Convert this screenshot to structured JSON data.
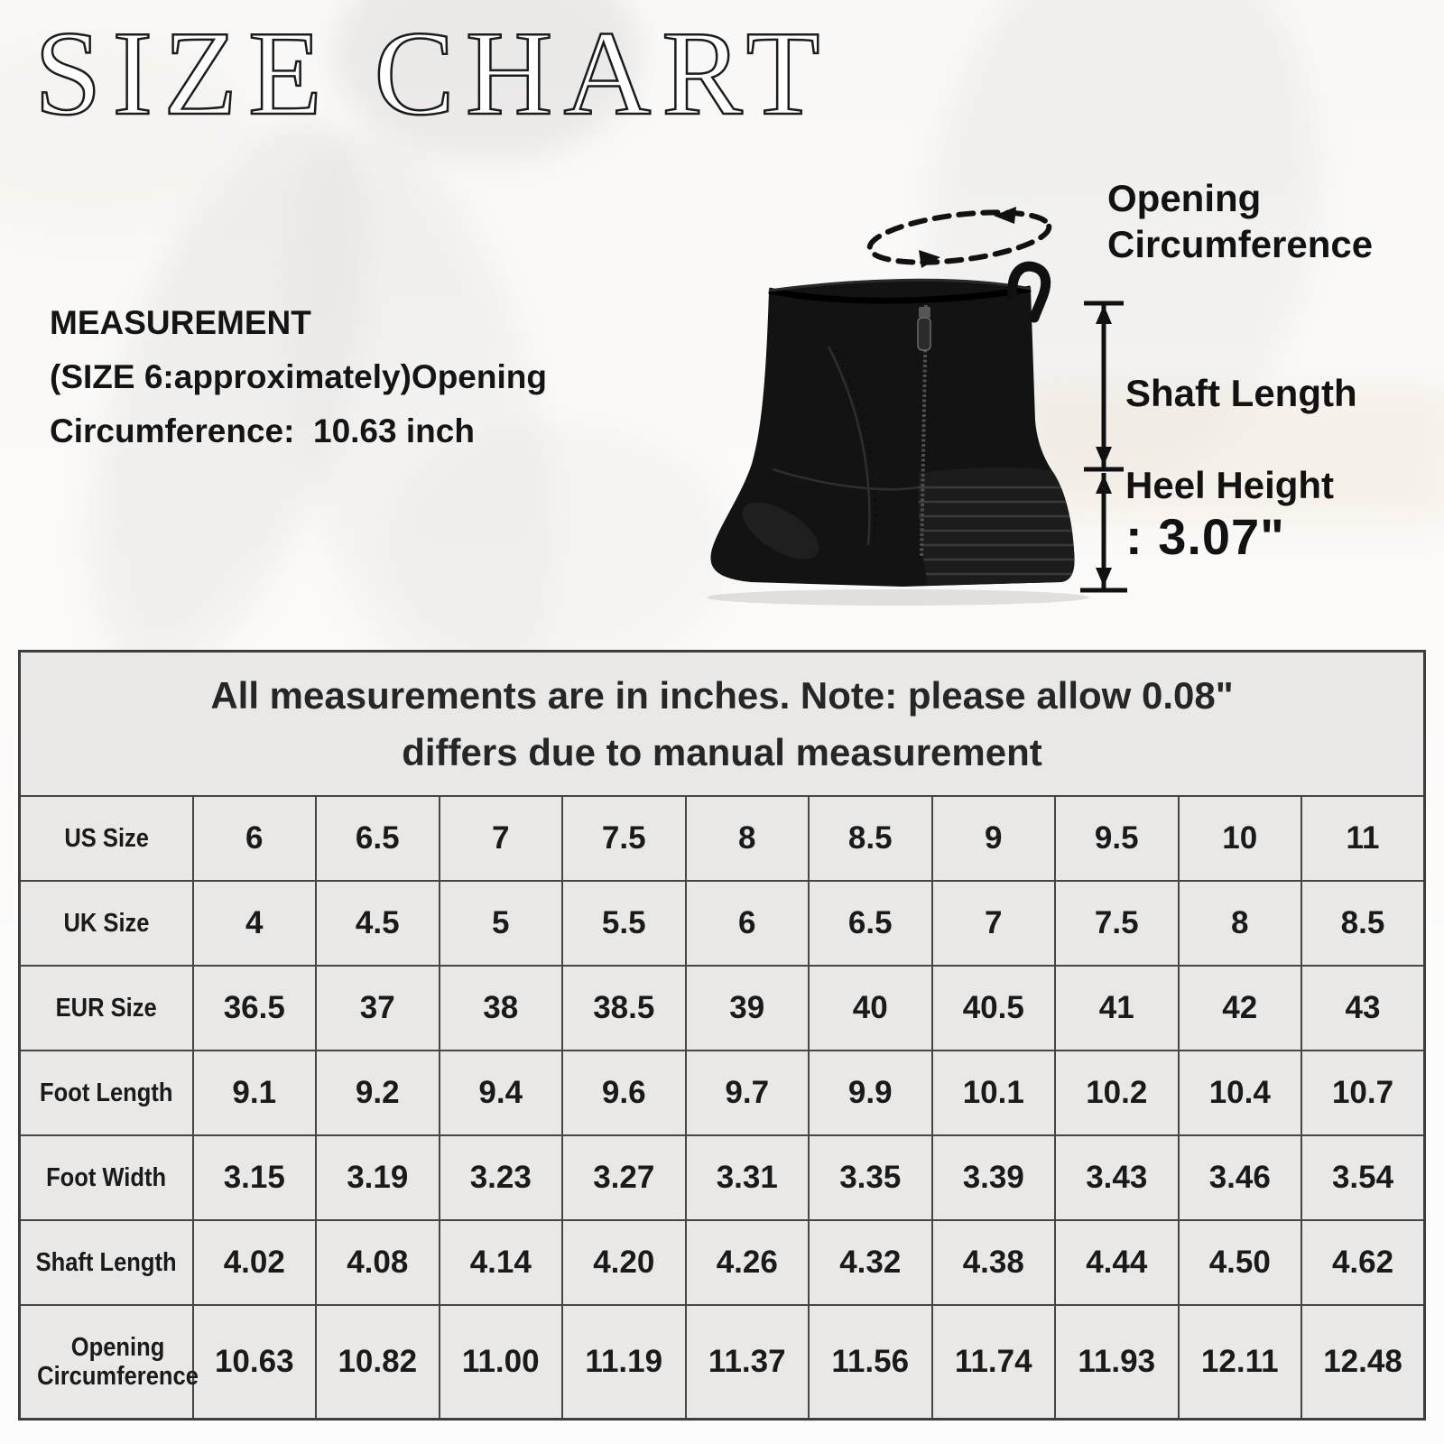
{
  "title": "SIZE CHART",
  "measurement": {
    "heading": "MEASUREMENT",
    "line2": "(SIZE 6:approximately)Opening",
    "line3": "Circumference:  10.63 inch"
  },
  "diagram": {
    "opening_label_line1": "Opening",
    "opening_label_line2": "Circumference",
    "shaft_label": "Shaft Length",
    "heel_label": "Heel Height",
    "heel_value": ": 3.07\"",
    "boot_color": "#131313",
    "annotation_color": "#111111"
  },
  "table": {
    "note_line1": "All measurements are in inches. Note: please allow 0.08\"",
    "note_line2": "differs due to manual measurement",
    "unit": "inches",
    "rows": [
      {
        "label": "US Size",
        "values": [
          "6",
          "6.5",
          "7",
          "7.5",
          "8",
          "8.5",
          "9",
          "9.5",
          "10",
          "11"
        ]
      },
      {
        "label": "UK Size",
        "values": [
          "4",
          "4.5",
          "5",
          "5.5",
          "6",
          "6.5",
          "7",
          "7.5",
          "8",
          "8.5"
        ]
      },
      {
        "label": "EUR Size",
        "values": [
          "36.5",
          "37",
          "38",
          "38.5",
          "39",
          "40",
          "40.5",
          "41",
          "42",
          "43"
        ]
      },
      {
        "label": "Foot Length",
        "values": [
          "9.1",
          "9.2",
          "9.4",
          "9.6",
          "9.7",
          "9.9",
          "10.1",
          "10.2",
          "10.4",
          "10.7"
        ]
      },
      {
        "label": "Foot Width",
        "values": [
          "3.15",
          "3.19",
          "3.23",
          "3.27",
          "3.31",
          "3.35",
          "3.39",
          "3.43",
          "3.46",
          "3.54"
        ]
      },
      {
        "label": "Shaft Length",
        "values": [
          "4.02",
          "4.08",
          "4.14",
          "4.20",
          "4.26",
          "4.32",
          "4.38",
          "4.44",
          "4.50",
          "4.62"
        ]
      },
      {
        "label": "Opening Circumference",
        "values": [
          "10.63",
          "10.82",
          "11.00",
          "11.19",
          "11.37",
          "11.56",
          "11.74",
          "11.93",
          "12.11",
          "12.48"
        ]
      }
    ]
  },
  "colors": {
    "table_background": "#e9e8e6",
    "table_border": "#3d3d3d",
    "text": "#1d1d1d"
  }
}
